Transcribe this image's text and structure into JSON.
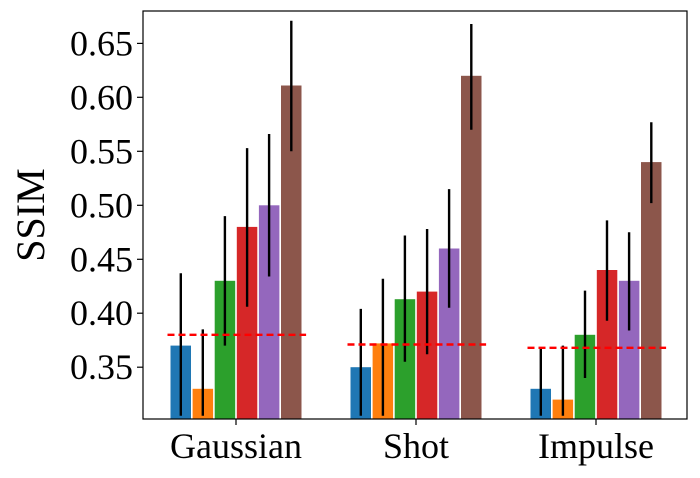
{
  "chart_data": {
    "type": "bar",
    "ylabel": "SSIM",
    "xlabel": "",
    "title": "",
    "categories": [
      "Gaussian",
      "Shot",
      "Impulse"
    ],
    "ylim": [
      0.302,
      0.68
    ],
    "yticks": [
      "0.35",
      "0.40",
      "0.45",
      "0.50",
      "0.55",
      "0.60",
      "0.65"
    ],
    "grid": false,
    "legend": "none",
    "series": [
      {
        "color": "#1f77b4",
        "values": [
          0.37,
          0.35,
          0.33
        ],
        "error_low": [
          0.305,
          0.305,
          0.305
        ],
        "error_high": [
          0.437,
          0.404,
          0.367
        ]
      },
      {
        "color": "#ff7f0e",
        "values": [
          0.33,
          0.372,
          0.32
        ],
        "error_low": [
          0.305,
          0.305,
          0.305
        ],
        "error_high": [
          0.385,
          0.432,
          0.37
        ]
      },
      {
        "color": "#2ca02c",
        "values": [
          0.43,
          0.413,
          0.38
        ],
        "error_low": [
          0.37,
          0.355,
          0.34
        ],
        "error_high": [
          0.49,
          0.472,
          0.421
        ]
      },
      {
        "color": "#d62728",
        "values": [
          0.48,
          0.42,
          0.44
        ],
        "error_low": [
          0.406,
          0.362,
          0.393
        ],
        "error_high": [
          0.553,
          0.478,
          0.486
        ]
      },
      {
        "color": "#9467bd",
        "values": [
          0.5,
          0.46,
          0.43
        ],
        "error_low": [
          0.434,
          0.405,
          0.384
        ],
        "error_high": [
          0.566,
          0.515,
          0.475
        ]
      },
      {
        "color": "#8c564b",
        "values": [
          0.611,
          0.62,
          0.54
        ],
        "error_low": [
          0.55,
          0.57,
          0.502
        ],
        "error_high": [
          0.671,
          0.668,
          0.577
        ]
      }
    ],
    "baselines": [
      0.38,
      0.371,
      0.368
    ],
    "baseline_color": "#ff0000"
  }
}
